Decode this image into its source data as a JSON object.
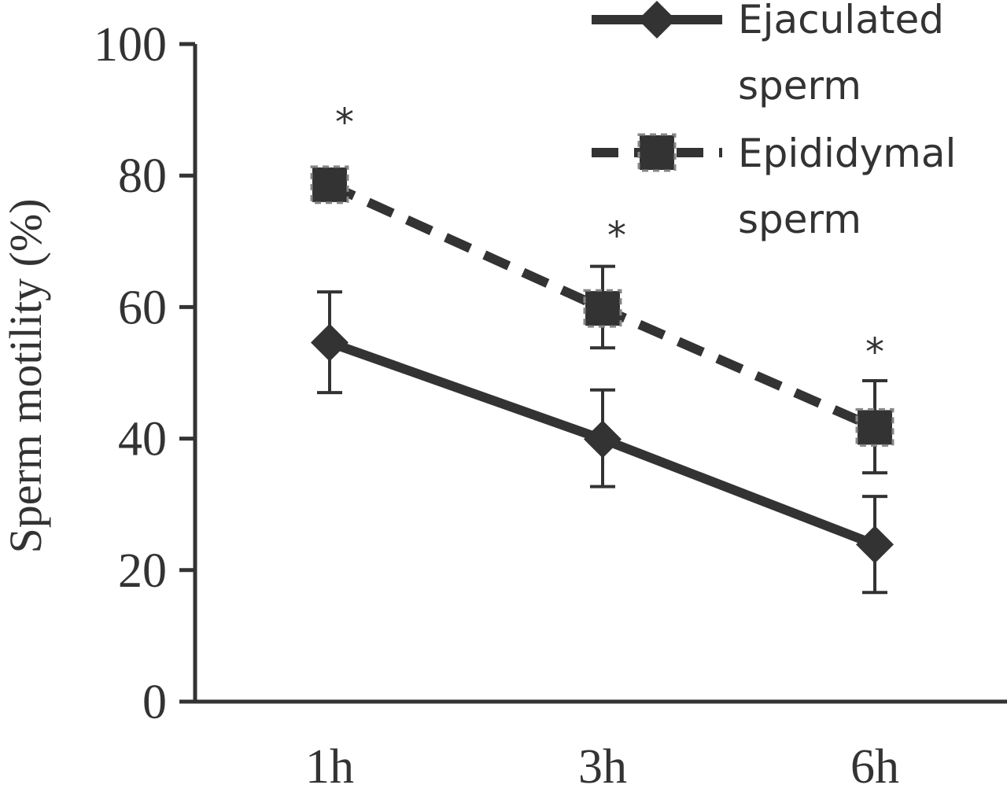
{
  "chart_data": {
    "type": "line",
    "title": "",
    "xlabel": "",
    "ylabel": "Sperm motility (%)",
    "ylim": [
      0,
      100
    ],
    "yticks": [
      "0",
      "20",
      "40",
      "60",
      "80",
      "100"
    ],
    "categories": [
      "1h",
      "3h",
      "6h"
    ],
    "series": [
      {
        "name": "Ejaculated sperm",
        "legend_lines": [
          "Ejaculated",
          "sperm"
        ],
        "values": [
          54.6,
          39.9,
          23.9
        ],
        "error_upper": [
          62.3,
          47.4,
          31.2
        ],
        "error_lower": [
          47.0,
          32.7,
          16.6
        ],
        "line_style": "solid",
        "marker": "diamond",
        "color": "#333333"
      },
      {
        "name": "Epididymal sperm",
        "legend_lines": [
          "Epididymal",
          "sperm"
        ],
        "values": [
          78.6,
          59.8,
          41.7
        ],
        "error_upper": null,
        "error_upper_3h": 66.2,
        "error_upper_6h": 48.8,
        "error_lower_3h": 53.8,
        "error_lower_6h": 34.8,
        "line_style": "dashed",
        "marker": "square",
        "color": "#333333"
      }
    ],
    "significance_marks": [
      "*",
      "*",
      "*"
    ],
    "grid": false,
    "legend_position": "top-right"
  }
}
